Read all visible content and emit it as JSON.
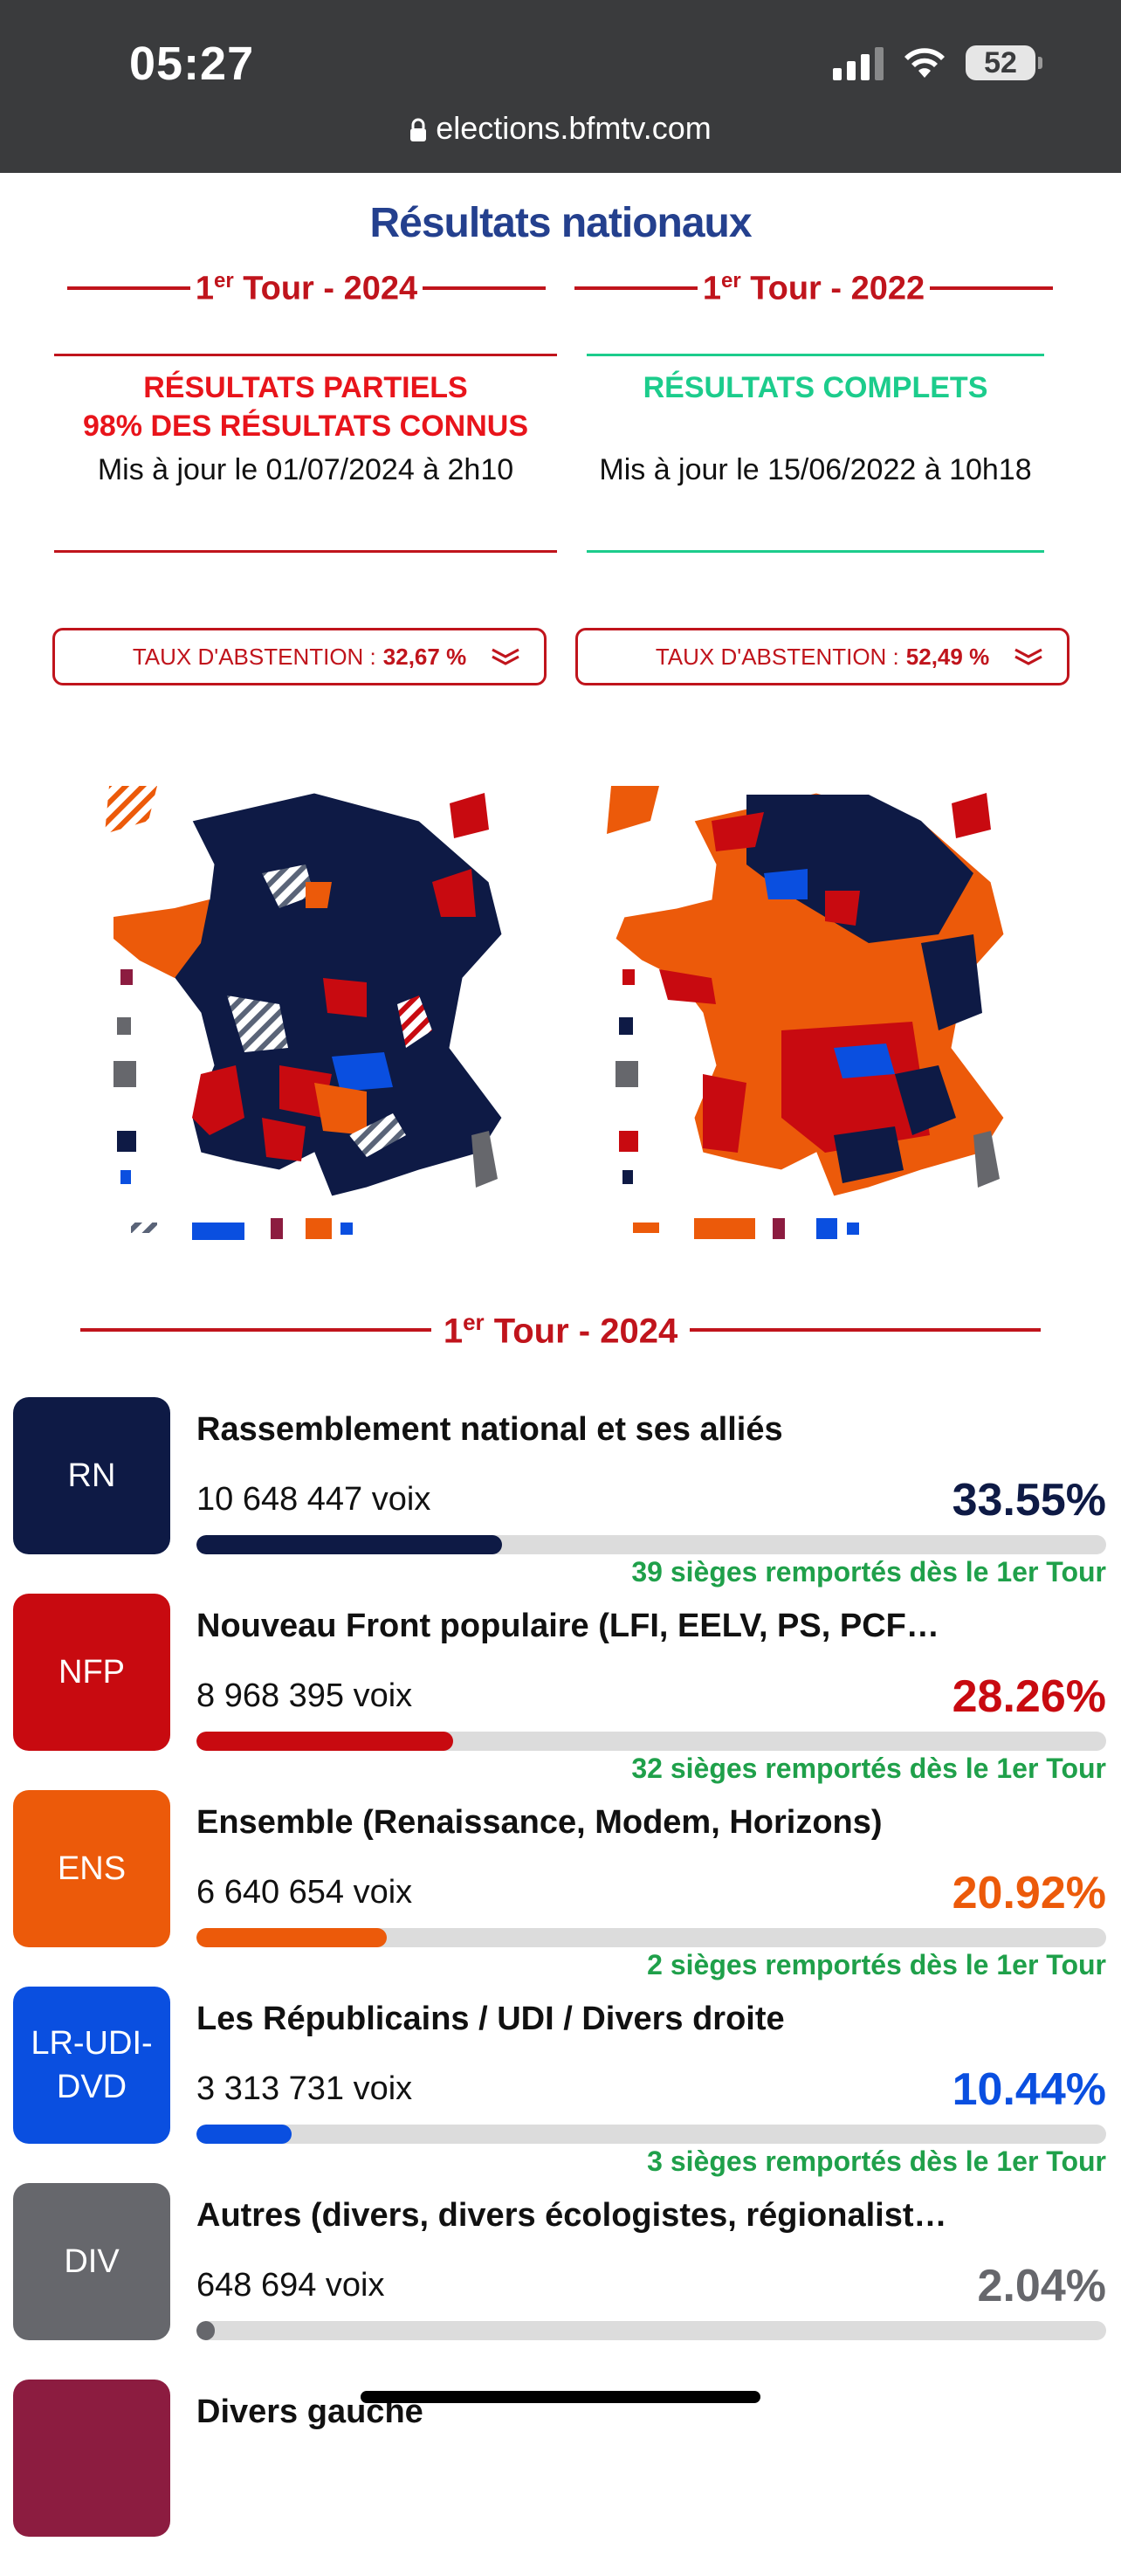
{
  "status_bar": {
    "time": "05:27",
    "battery": "52"
  },
  "browser": {
    "url": "elections.bfmtv.com"
  },
  "page": {
    "title": "Résultats nationaux"
  },
  "tours": [
    {
      "label": "1",
      "sup": "er",
      "rest": " Tour - 2024",
      "status_line1": "RÉSULTATS PARTIELS",
      "status_line2": "98% DES RÉSULTATS CONNUS",
      "updated": "Mis à jour le 01/07/2024 à 2h10",
      "abstention_label": "TAUX D'ABSTENTION :",
      "abstention_value": "32,67 %",
      "colors": {
        "status": "#e8141b",
        "rule": "#c0141c"
      }
    },
    {
      "label": "1",
      "sup": "er",
      "rest": " Tour - 2022",
      "status_line1": "RÉSULTATS COMPLETS",
      "updated": "Mis à jour le 15/06/2022 à 10h18",
      "abstention_label": "TAUX D'ABSTENTION :",
      "abstention_value": "52,49 %",
      "colors": {
        "status": "#1ccc8c",
        "rule": "#1ccc8c"
      }
    }
  ],
  "results_section": {
    "num": "1",
    "sup": "er",
    "rest": " Tour - 2024"
  },
  "parties": [
    {
      "abbr": "RN",
      "name": "Rassemblement national et ses alliés",
      "votes": "10 648 447 voix",
      "pct": "33.55%",
      "share": 0.3355,
      "seats": "39 sièges remportés dès le 1er Tour",
      "color": "#0e1a45"
    },
    {
      "abbr": "NFP",
      "name": "Nouveau Front populaire (LFI, EELV, PS, PCF…)",
      "votes": "8 968 395 voix",
      "pct": "28.26%",
      "share": 0.2826,
      "seats": "32 sièges remportés dès le 1er Tour",
      "color": "#c80a10"
    },
    {
      "abbr": "ENS",
      "name": "Ensemble (Renaissance, Modem, Horizons)",
      "votes": "6 640 654 voix",
      "pct": "20.92%",
      "share": 0.2092,
      "seats": "2 sièges remportés dès le 1er Tour",
      "color": "#ec5a0a"
    },
    {
      "abbr": "LR-UDI-DVD",
      "abbr_line1": "LR-UDI-",
      "abbr_line2": "DVD",
      "name": "Les Républicains / UDI / Divers droite",
      "votes": "3 313 731 voix",
      "pct": "10.44%",
      "share": 0.1044,
      "seats": "3 sièges remportés dès le 1er Tour",
      "color": "#0a4fe0"
    },
    {
      "abbr": "DIV",
      "name": "Autres (divers, divers écologistes, régionalistes)",
      "votes": "648 694 voix",
      "pct": "2.04%",
      "share": 0.0204,
      "color": "#66676c"
    },
    {
      "abbr": "",
      "name": "Divers gauche",
      "color": "#8c1c40"
    }
  ],
  "map_colors": {
    "rn": "#0e1a45",
    "nfp": "#c80a10",
    "ens": "#ec5a0a",
    "lr": "#0a4fe0",
    "div": "#66676c",
    "dvg": "#8c1c40"
  }
}
